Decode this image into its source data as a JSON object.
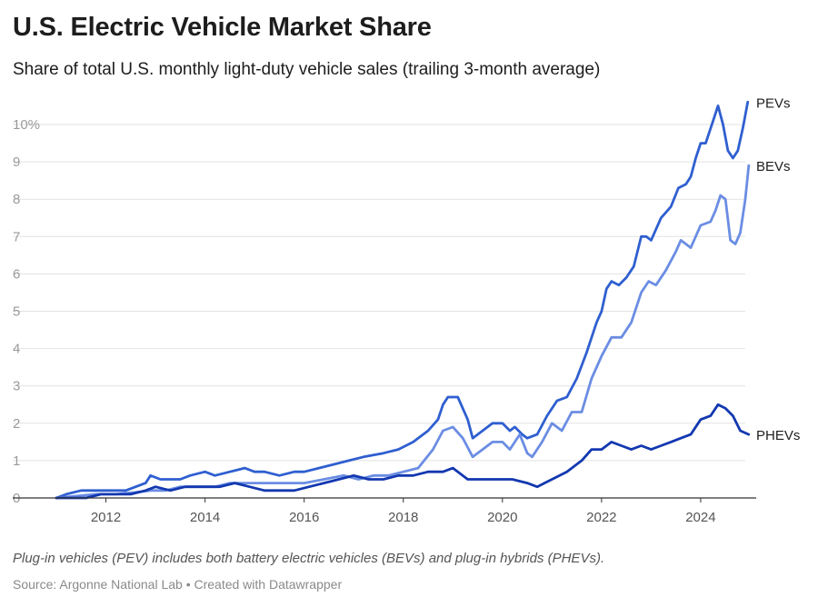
{
  "header": {
    "title": "U.S. Electric Vehicle Market Share",
    "subtitle": "Share of total U.S. monthly light-duty vehicle sales (trailing 3-month average)"
  },
  "footer": {
    "note": "Plug-in vehicles (PEV) includes both battery electric vehicles (BEVs) and plug-in hybrids (PHEVs).",
    "source": "Source: Argonne National Lab • Created with Datawrapper"
  },
  "chart_data": {
    "type": "line",
    "title": "U.S. Electric Vehicle Market Share",
    "subtitle": "Share of total U.S. monthly light-duty vehicle sales (trailing 3-month average)",
    "xlim": [
      2011.0,
      2024.9
    ],
    "ylim": [
      0,
      10.5
    ],
    "y_ticks": [
      0,
      1,
      2,
      3,
      4,
      5,
      6,
      7,
      8,
      9,
      10
    ],
    "y_tick_labels": [
      "0",
      "1",
      "2",
      "3",
      "4",
      "5",
      "6",
      "7",
      "8",
      "9",
      "10%"
    ],
    "x_ticks": [
      2012,
      2014,
      2016,
      2018,
      2020,
      2022,
      2024
    ],
    "x_tick_labels": [
      "2012",
      "2014",
      "2016",
      "2018",
      "2020",
      "2022",
      "2024"
    ],
    "grid": "horizontal",
    "legend": "inline labels at line ends",
    "colors": {
      "PEVs": "#2f5fd0",
      "BEVs": "#6b8de3",
      "PHEVs": "#1238b0"
    },
    "series": [
      {
        "name": "PEVs",
        "points": [
          [
            2011.0,
            0.0
          ],
          [
            2011.2,
            0.1
          ],
          [
            2011.5,
            0.2
          ],
          [
            2011.8,
            0.2
          ],
          [
            2012.0,
            0.2
          ],
          [
            2012.4,
            0.2
          ],
          [
            2012.6,
            0.3
          ],
          [
            2012.8,
            0.4
          ],
          [
            2012.9,
            0.6
          ],
          [
            2013.1,
            0.5
          ],
          [
            2013.5,
            0.5
          ],
          [
            2013.7,
            0.6
          ],
          [
            2014.0,
            0.7
          ],
          [
            2014.2,
            0.6
          ],
          [
            2014.5,
            0.7
          ],
          [
            2014.8,
            0.8
          ],
          [
            2015.0,
            0.7
          ],
          [
            2015.2,
            0.7
          ],
          [
            2015.5,
            0.6
          ],
          [
            2015.8,
            0.7
          ],
          [
            2016.0,
            0.7
          ],
          [
            2016.3,
            0.8
          ],
          [
            2016.6,
            0.9
          ],
          [
            2016.9,
            1.0
          ],
          [
            2017.2,
            1.1
          ],
          [
            2017.6,
            1.2
          ],
          [
            2017.9,
            1.3
          ],
          [
            2018.2,
            1.5
          ],
          [
            2018.5,
            1.8
          ],
          [
            2018.7,
            2.1
          ],
          [
            2018.8,
            2.5
          ],
          [
            2018.9,
            2.7
          ],
          [
            2019.1,
            2.7
          ],
          [
            2019.3,
            2.1
          ],
          [
            2019.4,
            1.6
          ],
          [
            2019.6,
            1.8
          ],
          [
            2019.8,
            2.0
          ],
          [
            2020.0,
            2.0
          ],
          [
            2020.15,
            1.8
          ],
          [
            2020.25,
            1.9
          ],
          [
            2020.4,
            1.7
          ],
          [
            2020.5,
            1.6
          ],
          [
            2020.7,
            1.7
          ],
          [
            2020.9,
            2.2
          ],
          [
            2021.1,
            2.6
          ],
          [
            2021.3,
            2.7
          ],
          [
            2021.5,
            3.2
          ],
          [
            2021.7,
            3.9
          ],
          [
            2021.9,
            4.7
          ],
          [
            2022.0,
            5.0
          ],
          [
            2022.1,
            5.6
          ],
          [
            2022.2,
            5.8
          ],
          [
            2022.35,
            5.7
          ],
          [
            2022.5,
            5.9
          ],
          [
            2022.65,
            6.2
          ],
          [
            2022.8,
            7.0
          ],
          [
            2022.9,
            7.0
          ],
          [
            2023.0,
            6.9
          ],
          [
            2023.2,
            7.5
          ],
          [
            2023.4,
            7.8
          ],
          [
            2023.55,
            8.3
          ],
          [
            2023.7,
            8.4
          ],
          [
            2023.8,
            8.6
          ],
          [
            2023.9,
            9.1
          ],
          [
            2024.0,
            9.5
          ],
          [
            2024.1,
            9.5
          ],
          [
            2024.25,
            10.1
          ],
          [
            2024.35,
            10.5
          ],
          [
            2024.45,
            10.0
          ],
          [
            2024.55,
            9.3
          ],
          [
            2024.65,
            9.1
          ],
          [
            2024.75,
            9.3
          ],
          [
            2024.85,
            9.9
          ],
          [
            2024.95,
            10.6
          ]
        ]
      },
      {
        "name": "BEVs",
        "points": [
          [
            2011.0,
            0.0
          ],
          [
            2011.4,
            0.05
          ],
          [
            2011.8,
            0.1
          ],
          [
            2012.2,
            0.1
          ],
          [
            2012.6,
            0.15
          ],
          [
            2012.9,
            0.2
          ],
          [
            2013.2,
            0.2
          ],
          [
            2013.5,
            0.3
          ],
          [
            2013.9,
            0.3
          ],
          [
            2014.2,
            0.3
          ],
          [
            2014.5,
            0.4
          ],
          [
            2014.9,
            0.4
          ],
          [
            2015.3,
            0.4
          ],
          [
            2015.7,
            0.4
          ],
          [
            2016.0,
            0.4
          ],
          [
            2016.4,
            0.5
          ],
          [
            2016.8,
            0.6
          ],
          [
            2017.1,
            0.5
          ],
          [
            2017.4,
            0.6
          ],
          [
            2017.7,
            0.6
          ],
          [
            2018.0,
            0.7
          ],
          [
            2018.3,
            0.8
          ],
          [
            2018.6,
            1.3
          ],
          [
            2018.8,
            1.8
          ],
          [
            2019.0,
            1.9
          ],
          [
            2019.2,
            1.6
          ],
          [
            2019.4,
            1.1
          ],
          [
            2019.6,
            1.3
          ],
          [
            2019.8,
            1.5
          ],
          [
            2020.0,
            1.5
          ],
          [
            2020.15,
            1.3
          ],
          [
            2020.25,
            1.5
          ],
          [
            2020.35,
            1.7
          ],
          [
            2020.5,
            1.2
          ],
          [
            2020.6,
            1.1
          ],
          [
            2020.8,
            1.5
          ],
          [
            2021.0,
            2.0
          ],
          [
            2021.2,
            1.8
          ],
          [
            2021.4,
            2.3
          ],
          [
            2021.6,
            2.3
          ],
          [
            2021.8,
            3.2
          ],
          [
            2022.0,
            3.8
          ],
          [
            2022.2,
            4.3
          ],
          [
            2022.4,
            4.3
          ],
          [
            2022.6,
            4.7
          ],
          [
            2022.8,
            5.5
          ],
          [
            2022.95,
            5.8
          ],
          [
            2023.1,
            5.7
          ],
          [
            2023.3,
            6.1
          ],
          [
            2023.5,
            6.6
          ],
          [
            2023.6,
            6.9
          ],
          [
            2023.8,
            6.7
          ],
          [
            2024.0,
            7.3
          ],
          [
            2024.2,
            7.4
          ],
          [
            2024.3,
            7.7
          ],
          [
            2024.4,
            8.1
          ],
          [
            2024.5,
            8.0
          ],
          [
            2024.6,
            6.9
          ],
          [
            2024.7,
            6.8
          ],
          [
            2024.8,
            7.1
          ],
          [
            2024.9,
            8.0
          ],
          [
            2024.97,
            8.9
          ]
        ]
      },
      {
        "name": "PHEVs",
        "points": [
          [
            2011.0,
            0.0
          ],
          [
            2011.3,
            0.0
          ],
          [
            2011.6,
            0.0
          ],
          [
            2011.9,
            0.1
          ],
          [
            2012.2,
            0.1
          ],
          [
            2012.5,
            0.1
          ],
          [
            2012.8,
            0.2
          ],
          [
            2013.0,
            0.3
          ],
          [
            2013.3,
            0.2
          ],
          [
            2013.6,
            0.3
          ],
          [
            2014.0,
            0.3
          ],
          [
            2014.3,
            0.3
          ],
          [
            2014.6,
            0.4
          ],
          [
            2014.9,
            0.3
          ],
          [
            2015.2,
            0.2
          ],
          [
            2015.5,
            0.2
          ],
          [
            2015.8,
            0.2
          ],
          [
            2016.1,
            0.3
          ],
          [
            2016.4,
            0.4
          ],
          [
            2016.7,
            0.5
          ],
          [
            2017.0,
            0.6
          ],
          [
            2017.3,
            0.5
          ],
          [
            2017.6,
            0.5
          ],
          [
            2017.9,
            0.6
          ],
          [
            2018.2,
            0.6
          ],
          [
            2018.5,
            0.7
          ],
          [
            2018.8,
            0.7
          ],
          [
            2019.0,
            0.8
          ],
          [
            2019.3,
            0.5
          ],
          [
            2019.6,
            0.5
          ],
          [
            2019.9,
            0.5
          ],
          [
            2020.2,
            0.5
          ],
          [
            2020.5,
            0.4
          ],
          [
            2020.7,
            0.3
          ],
          [
            2021.0,
            0.5
          ],
          [
            2021.3,
            0.7
          ],
          [
            2021.6,
            1.0
          ],
          [
            2021.8,
            1.3
          ],
          [
            2022.0,
            1.3
          ],
          [
            2022.2,
            1.5
          ],
          [
            2022.4,
            1.4
          ],
          [
            2022.6,
            1.3
          ],
          [
            2022.8,
            1.4
          ],
          [
            2023.0,
            1.3
          ],
          [
            2023.2,
            1.4
          ],
          [
            2023.4,
            1.5
          ],
          [
            2023.6,
            1.6
          ],
          [
            2023.8,
            1.7
          ],
          [
            2024.0,
            2.1
          ],
          [
            2024.2,
            2.2
          ],
          [
            2024.35,
            2.5
          ],
          [
            2024.5,
            2.4
          ],
          [
            2024.65,
            2.2
          ],
          [
            2024.8,
            1.8
          ],
          [
            2024.97,
            1.7
          ]
        ]
      }
    ]
  }
}
